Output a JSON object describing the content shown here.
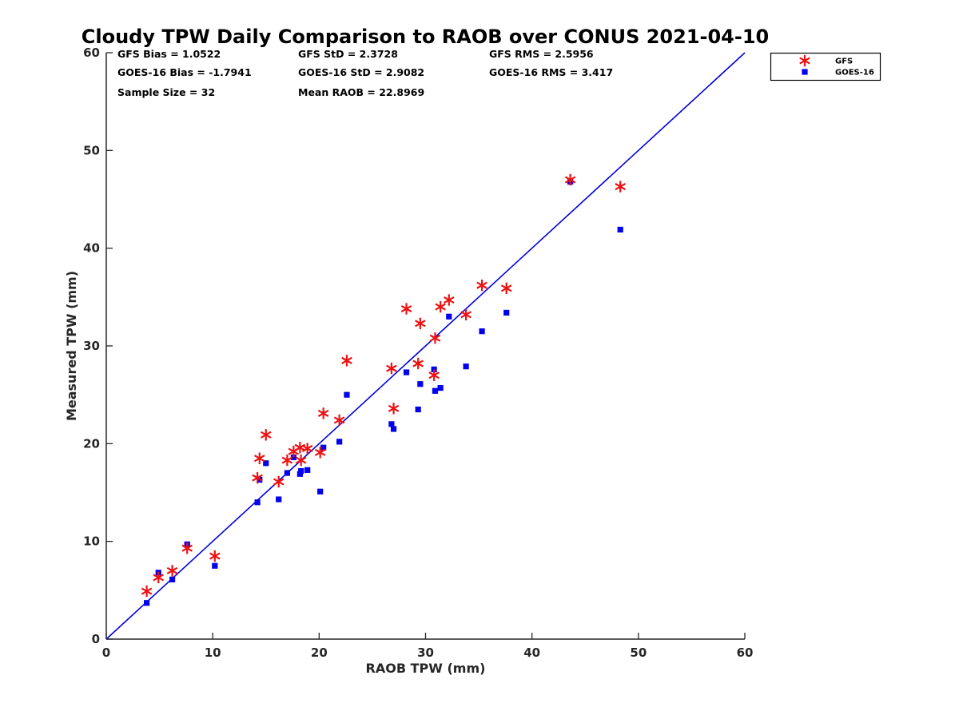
{
  "chart_data": {
    "type": "scatter",
    "title": "Cloudy TPW Daily Comparison to RAOB over CONUS 2021-04-10",
    "xlabel": "RAOB TPW (mm)",
    "ylabel": "Measured TPW (mm)",
    "xlim": [
      0,
      60
    ],
    "ylim": [
      0,
      60
    ],
    "xticks": [
      "0",
      "10",
      "20",
      "30",
      "40",
      "50",
      "60"
    ],
    "yticks": [
      "0",
      "10",
      "20",
      "30",
      "40",
      "50",
      "60"
    ],
    "grid": false,
    "legend_position": "top-right (outside axes)",
    "reference_line": {
      "description": "1:1 line",
      "color": "#0000dd",
      "from": [
        0,
        0
      ],
      "to": [
        60,
        60
      ]
    },
    "stats": [
      [
        "GFS Bias = 1.0522",
        "GFS StD = 2.3728",
        "GFS RMS = 2.5956"
      ],
      [
        "GOES-16 Bias = -1.7941",
        "GOES-16 StD = 2.9082",
        "GOES-16 RMS = 3.417"
      ],
      [
        "Sample Size = 32",
        "Mean RAOB = 22.8969",
        ""
      ]
    ],
    "series": [
      {
        "name": "GFS",
        "marker": "asterisk",
        "color": "#ee1111",
        "x": [
          3.8,
          4.9,
          6.2,
          7.6,
          10.2,
          14.2,
          14.4,
          15.0,
          16.2,
          17.0,
          17.6,
          18.2,
          18.3,
          18.9,
          20.1,
          20.4,
          21.9,
          22.6,
          26.8,
          27.0,
          28.2,
          29.3,
          29.5,
          30.8,
          30.9,
          31.4,
          32.2,
          33.8,
          35.3,
          37.6,
          43.6,
          48.3
        ],
        "y": [
          4.9,
          6.3,
          7.0,
          9.3,
          8.5,
          16.5,
          18.5,
          20.9,
          16.1,
          18.3,
          19.2,
          19.6,
          18.3,
          19.5,
          19.1,
          23.1,
          22.4,
          28.5,
          27.7,
          23.6,
          33.8,
          28.2,
          32.3,
          27.0,
          30.8,
          34.0,
          34.7,
          33.2,
          36.2,
          35.9,
          47.0,
          46.3
        ]
      },
      {
        "name": "GOES-16",
        "marker": "square",
        "color": "#0000ee",
        "x": [
          3.8,
          4.9,
          6.2,
          7.6,
          10.2,
          14.2,
          14.4,
          15.0,
          16.2,
          17.0,
          17.6,
          18.2,
          18.3,
          18.9,
          20.1,
          20.4,
          21.9,
          22.6,
          26.8,
          27.0,
          28.2,
          29.3,
          29.5,
          30.8,
          30.9,
          31.4,
          32.2,
          33.8,
          35.3,
          37.6,
          43.6,
          48.3
        ],
        "y": [
          3.7,
          6.8,
          6.1,
          9.7,
          7.5,
          14.0,
          16.3,
          18.0,
          14.3,
          17.0,
          18.6,
          16.9,
          17.2,
          17.3,
          15.1,
          19.6,
          20.2,
          25.0,
          22.0,
          21.5,
          27.3,
          23.5,
          26.1,
          27.6,
          25.4,
          25.7,
          33.0,
          27.9,
          31.5,
          33.4,
          46.8,
          41.9
        ]
      }
    ]
  }
}
